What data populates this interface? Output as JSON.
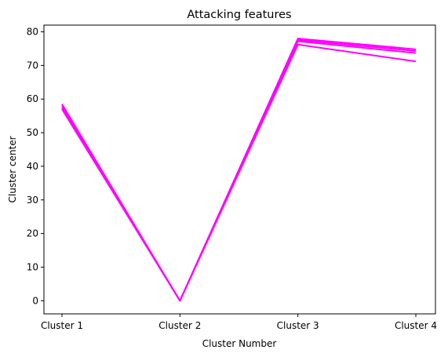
{
  "chart_data": {
    "type": "line",
    "title": "Attacking features",
    "xlabel": "Cluster Number",
    "ylabel": "Cluster center",
    "categories": [
      "Cluster 1",
      "Cluster 2",
      "Cluster 3",
      "Cluster 4"
    ],
    "yticks": [
      0,
      10,
      20,
      30,
      40,
      50,
      60,
      70,
      80
    ],
    "ylim": [
      -3.9,
      82
    ],
    "grid": false,
    "line_color": "#ff00ff",
    "series": [
      {
        "values": [
          58.5,
          0,
          78.0,
          74.8
        ]
      },
      {
        "values": [
          58.0,
          0,
          77.6,
          74.3
        ]
      },
      {
        "values": [
          57.4,
          0,
          77.2,
          73.7
        ]
      },
      {
        "values": [
          57.0,
          0,
          76.2,
          71.2
        ]
      }
    ]
  }
}
